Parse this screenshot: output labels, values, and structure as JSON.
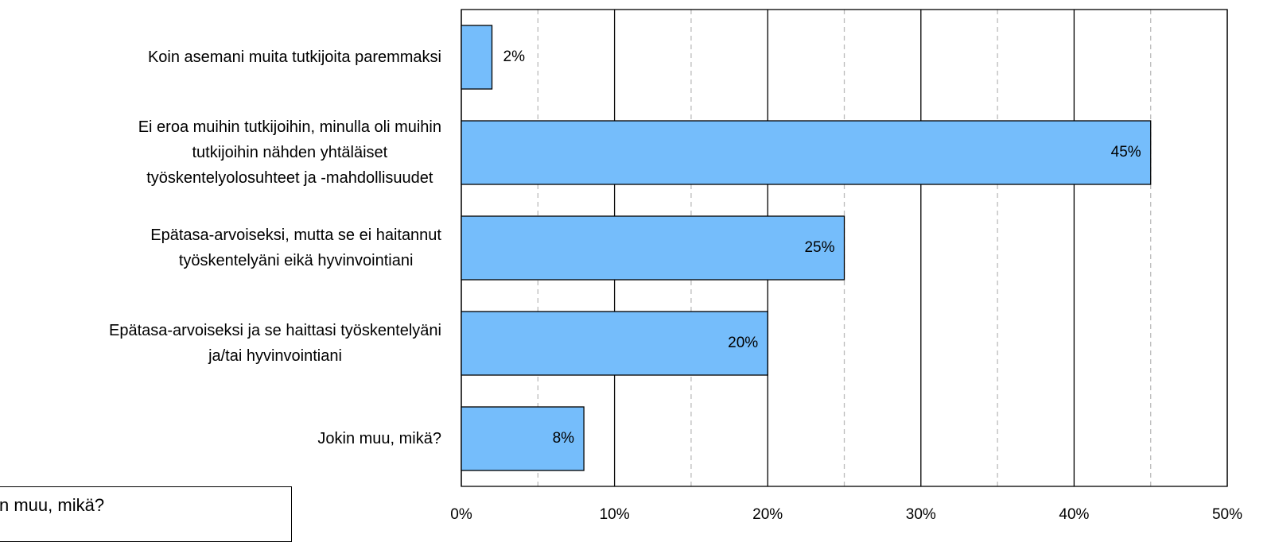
{
  "chart_data": {
    "type": "bar",
    "orientation": "horizontal",
    "categories": [
      "Koin asemani muita tutkijoita paremmaksi",
      "Ei eroa muihin tutkijoihin, minulla oli muihin\ntutkijoihin nähden yhtäläiset\ntyöskentelyolosuhteet ja -mahdollisuudet",
      "Epätasa-arvoiseksi, mutta se ei haitannut\ntyöskentelyäni eikä hyvinvointiani",
      "Epätasa-arvoiseksi ja se haittasi työskentelyäni\nja/tai hyvinvointiani",
      "Jokin muu, mikä?"
    ],
    "values": [
      2,
      45,
      25,
      20,
      8
    ],
    "value_labels": [
      "2%",
      "45%",
      "25%",
      "20%",
      "8%"
    ],
    "color": "#75bdfb",
    "xlim": [
      0,
      50
    ],
    "xticks": [
      {
        "value": 0,
        "label": "0%"
      },
      {
        "value": 10,
        "label": "10%"
      },
      {
        "value": 20,
        "label": "20%"
      },
      {
        "value": 30,
        "label": "30%"
      },
      {
        "value": 40,
        "label": "40%"
      },
      {
        "value": 50,
        "label": "50%"
      }
    ],
    "minor_xticks": [
      5,
      15,
      25,
      35,
      45
    ],
    "grid": true,
    "annotation": "n muu, mikä?"
  }
}
